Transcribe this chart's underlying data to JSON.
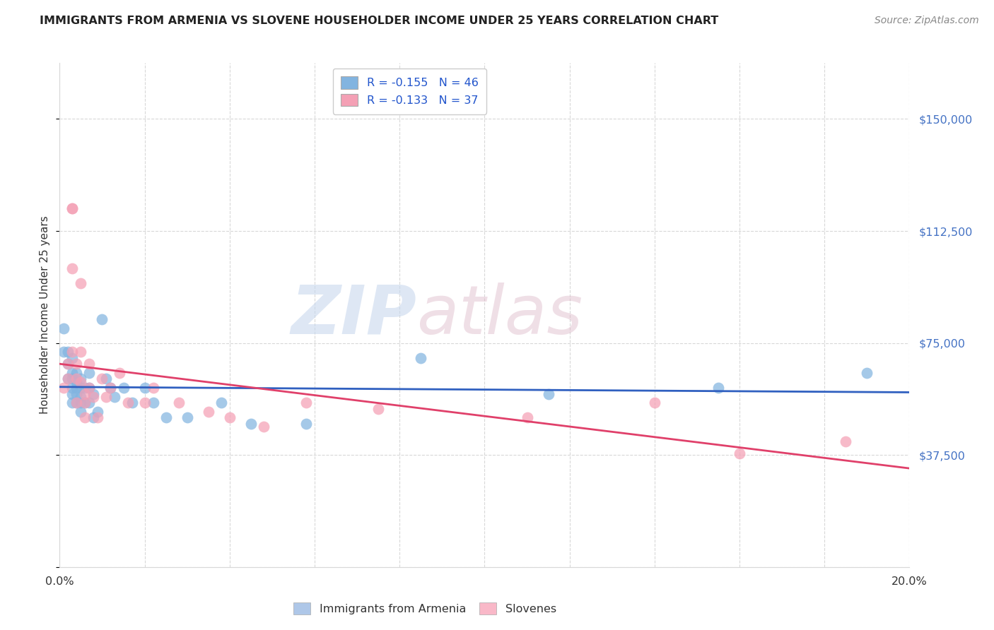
{
  "title": "IMMIGRANTS FROM ARMENIA VS SLOVENE HOUSEHOLDER INCOME UNDER 25 YEARS CORRELATION CHART",
  "source": "Source: ZipAtlas.com",
  "ylabel": "Householder Income Under 25 years",
  "xlim": [
    0.0,
    0.2
  ],
  "ylim": [
    0,
    168750
  ],
  "ytick_vals": [
    0,
    37500,
    75000,
    112500,
    150000
  ],
  "ytick_labels": [
    "",
    "$37,500",
    "$75,000",
    "$112,500",
    "$150,000"
  ],
  "xtick_vals": [
    0.0,
    0.02,
    0.04,
    0.06,
    0.08,
    0.1,
    0.12,
    0.14,
    0.16,
    0.18,
    0.2
  ],
  "blue_scatter_color": "#82b4e0",
  "pink_scatter_color": "#f4a0b5",
  "blue_line_color": "#3060c0",
  "pink_line_color": "#e0406a",
  "legend_r_blue": "R = -0.155",
  "legend_n_blue": "N = 46",
  "legend_r_pink": "R = -0.133",
  "legend_n_pink": "N = 37",
  "label_blue": "Immigrants from Armenia",
  "label_pink": "Slovenes",
  "watermark_zip": "ZIP",
  "watermark_atlas": "atlas",
  "grid_color": "#d8d8d8",
  "right_label_color": "#4472C4",
  "title_color": "#222222",
  "source_color": "#888888",
  "armenia_x": [
    0.001,
    0.001,
    0.002,
    0.002,
    0.002,
    0.003,
    0.003,
    0.003,
    0.003,
    0.003,
    0.003,
    0.004,
    0.004,
    0.004,
    0.004,
    0.004,
    0.005,
    0.005,
    0.005,
    0.005,
    0.005,
    0.006,
    0.006,
    0.007,
    0.007,
    0.007,
    0.008,
    0.008,
    0.009,
    0.01,
    0.011,
    0.012,
    0.013,
    0.015,
    0.017,
    0.02,
    0.022,
    0.025,
    0.03,
    0.038,
    0.045,
    0.058,
    0.085,
    0.115,
    0.155,
    0.19
  ],
  "armenia_y": [
    80000,
    72000,
    72000,
    68000,
    63000,
    70000,
    65000,
    63000,
    60000,
    58000,
    55000,
    65000,
    62000,
    60000,
    58000,
    55000,
    63000,
    60000,
    57000,
    55000,
    52000,
    60000,
    55000,
    65000,
    60000,
    55000,
    58000,
    50000,
    52000,
    83000,
    63000,
    60000,
    57000,
    60000,
    55000,
    60000,
    55000,
    50000,
    50000,
    55000,
    48000,
    48000,
    70000,
    58000,
    60000,
    65000
  ],
  "slovene_x": [
    0.001,
    0.002,
    0.002,
    0.003,
    0.003,
    0.003,
    0.003,
    0.004,
    0.004,
    0.004,
    0.005,
    0.005,
    0.005,
    0.006,
    0.006,
    0.006,
    0.007,
    0.007,
    0.008,
    0.009,
    0.01,
    0.011,
    0.012,
    0.014,
    0.016,
    0.02,
    0.022,
    0.028,
    0.035,
    0.04,
    0.048,
    0.058,
    0.075,
    0.11,
    0.14,
    0.16,
    0.185
  ],
  "slovene_y": [
    60000,
    68000,
    63000,
    120000,
    120000,
    100000,
    72000,
    68000,
    63000,
    55000,
    95000,
    72000,
    62000,
    58000,
    55000,
    50000,
    60000,
    68000,
    57000,
    50000,
    63000,
    57000,
    60000,
    65000,
    55000,
    55000,
    60000,
    55000,
    52000,
    50000,
    47000,
    55000,
    53000,
    50000,
    55000,
    38000,
    42000
  ]
}
